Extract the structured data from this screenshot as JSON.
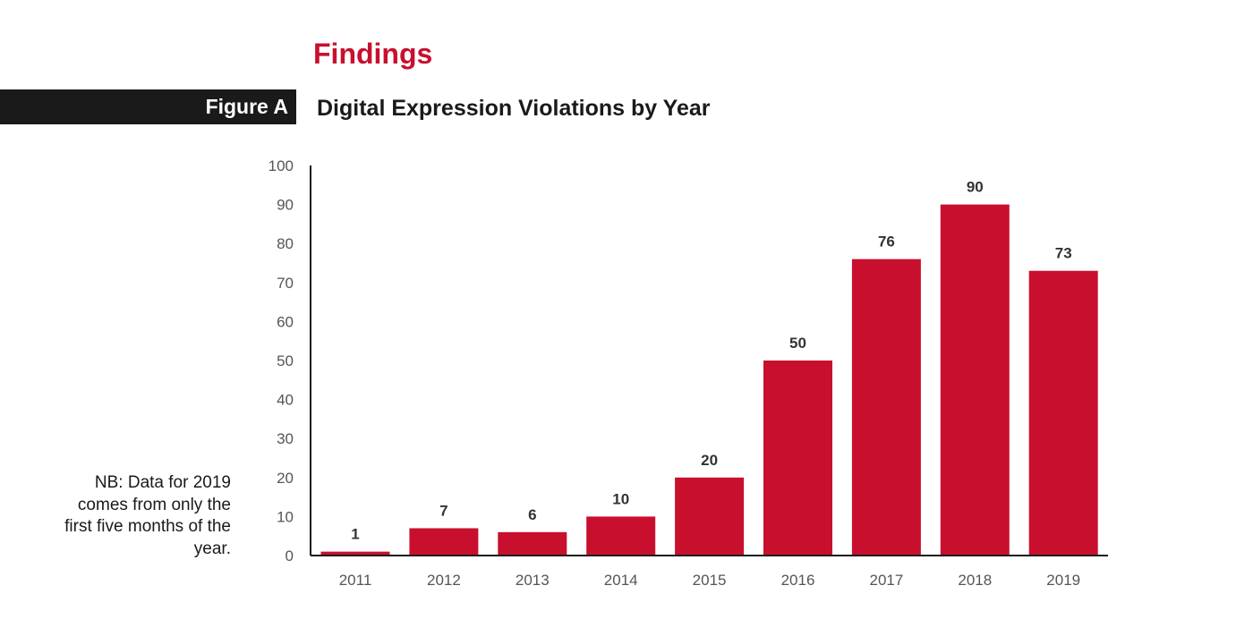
{
  "header": {
    "section_title": "Findings",
    "figure_tag": "Figure A"
  },
  "note": "NB: Data for 2019 comes from only the first five months of the year.",
  "colors": {
    "bar": "#c8102e",
    "section_title": "#c8102e",
    "axis": "#1a1a1a"
  },
  "chart_data": {
    "type": "bar",
    "title": "Digital Expression Violations by Year",
    "xlabel": "",
    "ylabel": "",
    "categories": [
      "2011",
      "2012",
      "2013",
      "2014",
      "2015",
      "2016",
      "2017",
      "2018",
      "2019"
    ],
    "values": [
      1,
      7,
      6,
      10,
      20,
      50,
      76,
      90,
      73
    ],
    "ylim": [
      0,
      100
    ],
    "yticks": [
      0,
      10,
      20,
      30,
      40,
      50,
      60,
      70,
      80,
      90,
      100
    ],
    "grid": false,
    "legend": "none",
    "data_labels": true
  }
}
